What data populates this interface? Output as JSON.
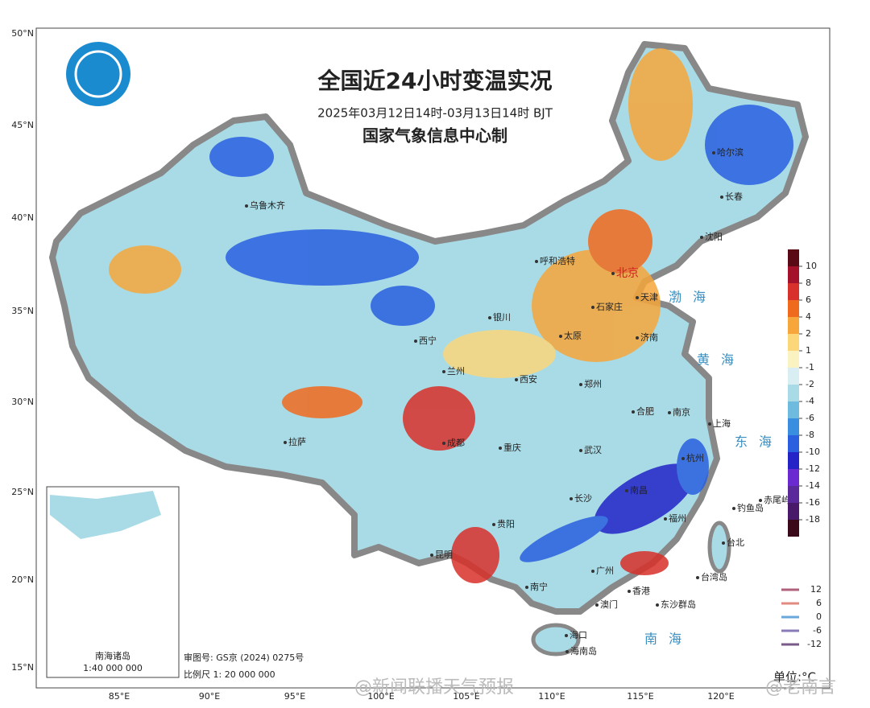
{
  "header": {
    "title": "全国近24小时变温实况",
    "subtitle": "2025年03月12日14时-03月13日14时  BJT",
    "producer": "国家气象信息中心制"
  },
  "axes": {
    "latitudes": [
      "50°N",
      "45°N",
      "40°N",
      "35°N",
      "30°N",
      "25°N",
      "20°N",
      "15°N"
    ],
    "longitudes": [
      "85°E",
      "90°E",
      "95°E",
      "100°E",
      "105°E",
      "110°E",
      "115°E",
      "120°E"
    ]
  },
  "cities": [
    "乌鲁木齐",
    "呼和浩特",
    "北京",
    "天津",
    "石家庄",
    "银川",
    "太原",
    "济南",
    "西宁",
    "兰州",
    "郑州",
    "西安",
    "哈尔滨",
    "长春",
    "沈阳",
    "合肥",
    "南京",
    "上海",
    "成都",
    "拉萨",
    "武汉",
    "杭州",
    "重庆",
    "长沙",
    "南昌",
    "福州",
    "贵阳",
    "台北",
    "昆明",
    "南宁",
    "广州",
    "香港",
    "澳门",
    "台湾岛",
    "东沙群岛",
    "海口",
    "海南岛",
    "钓鱼岛",
    "赤尾屿"
  ],
  "seas": [
    "渤海",
    "黄海",
    "东海",
    "南海"
  ],
  "legend": {
    "unit": "单位:°C",
    "ticks": [
      10,
      8,
      6,
      4,
      2,
      1,
      -1,
      -2,
      -4,
      -6,
      -8,
      -10,
      -12,
      -14,
      -16,
      -18
    ],
    "colors": [
      "#5a0a14",
      "#a3122a",
      "#d8302a",
      "#f06a1e",
      "#f6a63a",
      "#fbd77a",
      "#fbf2c2",
      "#d8eef2",
      "#a9dbe6",
      "#6fbbe0",
      "#3a8ee0",
      "#2a5fe0",
      "#2323c8",
      "#6a2ad0",
      "#5a2a9a",
      "#4a1a6a",
      "#3a0a1a"
    ],
    "contours": [
      12,
      6,
      0,
      -6,
      -12
    ],
    "contour_colors": [
      "#b0607a",
      "#e08a80",
      "#6aa8dc",
      "#8a7ab8",
      "#7a5a8a"
    ]
  },
  "inset": {
    "title": "南海诸岛",
    "scale": "1:40 000 000"
  },
  "footer": {
    "review": "审图号: GS京 (2024) 0275号",
    "scale": "比例尺  1: 20 000 000"
  },
  "watermarks": [
    "@新闻联播天气预报",
    "@老南言"
  ]
}
